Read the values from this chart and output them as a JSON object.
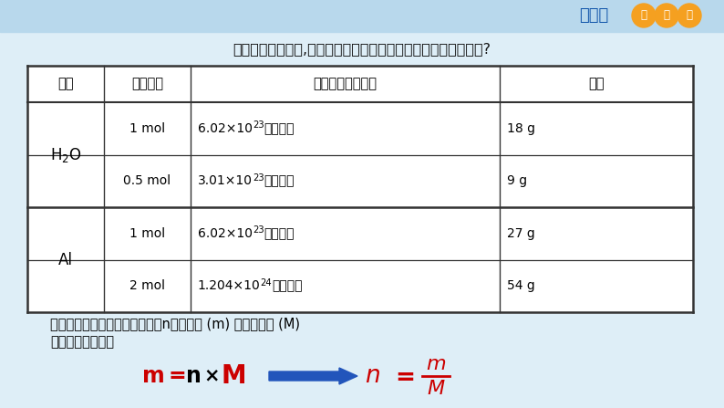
{
  "bg_color": "#deeef7",
  "header_bg": "#b8d8ec",
  "title_text": "观察表格中的数据,分析物质的量、粒子数、质量之间有什么关系?",
  "title_color": "#111111",
  "badge_main": "新教材",
  "badge_main_color": "#1155aa",
  "circle_texts": [
    "新",
    "高",
    "考"
  ],
  "circle_color": "#f5a020",
  "table_headers": [
    "物质",
    "物质的量",
    "含有的粒子及数目",
    "质量"
  ],
  "row1_col0": "H₂O",
  "row1_col1": "1 mol",
  "row1_col2_pre": "6.02×10",
  "row1_col2_sup": "23",
  "row1_col2_post": "个水分子",
  "row1_col3": "18 g",
  "row2_col1": "0.5 mol",
  "row2_col2_pre": "3.01×10",
  "row2_col2_sup": "23",
  "row2_col2_post": "个水分子",
  "row2_col3": "9 g",
  "row3_col0": "Al",
  "row3_col1": "1 mol",
  "row3_col2_pre": "6.02×10",
  "row3_col2_sup": "23",
  "row3_col2_post": "个铝原子",
  "row3_col3": "27 g",
  "row4_col1": "2 mol",
  "row4_col2_pre": "1.204×10",
  "row4_col2_sup": "24",
  "row4_col2_post": "个铝原子",
  "row4_col3": "54 g",
  "footer_line1": "根据上述过程，指出物质的量（n）、质量 (m) 与摩尔质量 (M)",
  "footer_line2": "之间存在的关系：",
  "formula_color": "#cc0000",
  "arrow_color": "#2255bb",
  "white": "#ffffff",
  "black": "#000000",
  "table_border": "#333333"
}
